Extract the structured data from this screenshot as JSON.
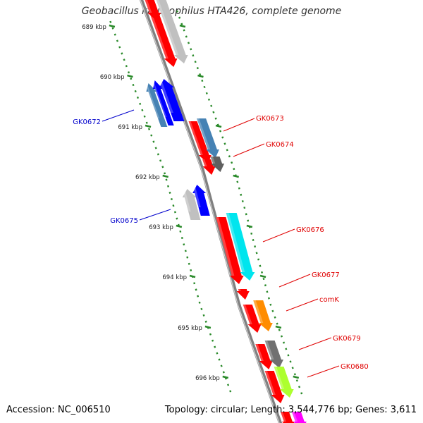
{
  "title": "Geobacillus kaustophilus HTA426, complete genome",
  "accession": "Accession: NC_006510",
  "topology": "Topology: circular; Length: 3,544,776 bp; Genes: 3,611",
  "colors": {
    "backbone": "#808080",
    "tick": "#2a8a2a",
    "forward_label": "#e00000",
    "reverse_label": "#0000cc"
  },
  "kbp_ticks": [
    "689 kbp",
    "690 kbp",
    "691 kbp",
    "692 kbp",
    "693 kbp",
    "694 kbp",
    "695 kbp",
    "696 kbp"
  ],
  "forward_labels": [
    "GK0673",
    "GK0674",
    "GK0676",
    "GK0677",
    "comK",
    "GK0679",
    "GK0680"
  ],
  "reverse_labels": [
    "GK0672",
    "GK0675"
  ]
}
